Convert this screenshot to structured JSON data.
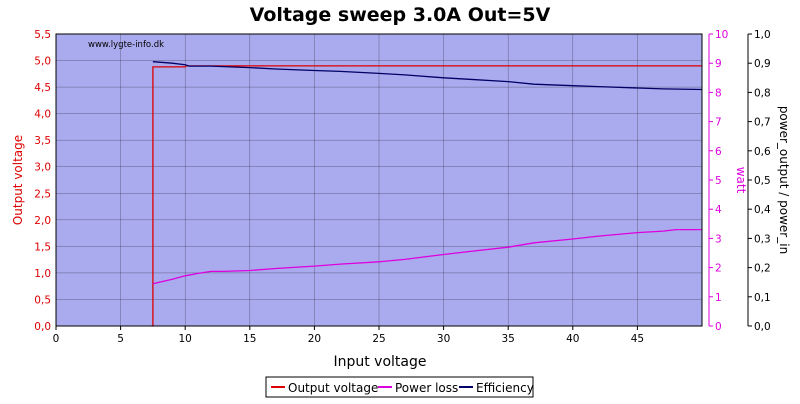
{
  "chart_data": {
    "type": "line",
    "title": "Voltage sweep 3.0A Out=5V",
    "watermark": "www.lygte-info.dk",
    "xlabel": "Input voltage",
    "xlim": [
      0,
      50
    ],
    "xticks": [
      0,
      5,
      10,
      15,
      20,
      25,
      30,
      35,
      40,
      45
    ],
    "xtick_labels": [
      "0",
      "5",
      "10",
      "15",
      "20",
      "25",
      "30",
      "35",
      "40",
      "45"
    ],
    "y_left": {
      "label": "Output voltage",
      "color": "#dd0000",
      "ylim": [
        0,
        5.5
      ],
      "ticks": [
        0,
        0.5,
        1.0,
        1.5,
        2.0,
        2.5,
        3.0,
        3.5,
        4.0,
        4.5,
        5.0,
        5.5
      ],
      "tick_labels": [
        "0,0",
        "0,5",
        "1,0",
        "1,5",
        "2,0",
        "2,5",
        "3,0",
        "3,5",
        "4,0",
        "4,5",
        "5,0",
        "5,5"
      ]
    },
    "y_right1": {
      "label": "watt",
      "color": "#dd00dd",
      "ylim": [
        0,
        10
      ],
      "ticks": [
        0,
        1,
        2,
        3,
        4,
        5,
        6,
        7,
        8,
        9,
        10
      ],
      "tick_labels": [
        "0",
        "1",
        "2",
        "3",
        "4",
        "5",
        "6",
        "7",
        "8",
        "9",
        "10"
      ]
    },
    "y_right2": {
      "label": "power_output / power_in",
      "color": "#000000",
      "ylim": [
        0,
        1.0
      ],
      "ticks": [
        0,
        0.1,
        0.2,
        0.3,
        0.4,
        0.5,
        0.6,
        0.7,
        0.8,
        0.9,
        1.0
      ],
      "tick_labels": [
        "0,0",
        "0,1",
        "0,2",
        "0,3",
        "0,4",
        "0,5",
        "0,6",
        "0,7",
        "0,8",
        "0,9",
        "1,0"
      ]
    },
    "grid": true,
    "legend_position": "bottom",
    "series": [
      {
        "name": "Output voltage",
        "axis": "left",
        "color": "#dd0000",
        "x": [
          7.4,
          7.45,
          7.5,
          7.5,
          10.0,
          10.1,
          10.2,
          15,
          20,
          25,
          30,
          35,
          40,
          45,
          50
        ],
        "y": [
          0.0,
          0.0,
          0.0,
          4.88,
          4.88,
          4.9,
          4.9,
          4.9,
          4.9,
          4.9,
          4.9,
          4.9,
          4.9,
          4.9,
          4.9
        ]
      },
      {
        "name": "Power loss",
        "axis": "right1",
        "color": "#dd00dd",
        "x": [
          7.5,
          8,
          9,
          10,
          11,
          12,
          13,
          15,
          17,
          20,
          22,
          25,
          27,
          30,
          32,
          35,
          37,
          40,
          42,
          45,
          47,
          48,
          50
        ],
        "y": [
          1.45,
          1.5,
          1.6,
          1.72,
          1.8,
          1.87,
          1.87,
          1.9,
          1.97,
          2.05,
          2.12,
          2.2,
          2.28,
          2.45,
          2.55,
          2.7,
          2.85,
          2.98,
          3.08,
          3.2,
          3.25,
          3.3,
          3.3
        ]
      },
      {
        "name": "Efficiency",
        "axis": "right2",
        "color": "#000066",
        "x": [
          7.5,
          9,
          10,
          10.3,
          12,
          15,
          17,
          20,
          22,
          25,
          27,
          30,
          32,
          35,
          37,
          40,
          42,
          45,
          47,
          50
        ],
        "y": [
          0.905,
          0.9,
          0.895,
          0.89,
          0.89,
          0.885,
          0.88,
          0.875,
          0.872,
          0.865,
          0.86,
          0.85,
          0.845,
          0.837,
          0.828,
          0.823,
          0.82,
          0.815,
          0.812,
          0.81
        ]
      }
    ]
  }
}
